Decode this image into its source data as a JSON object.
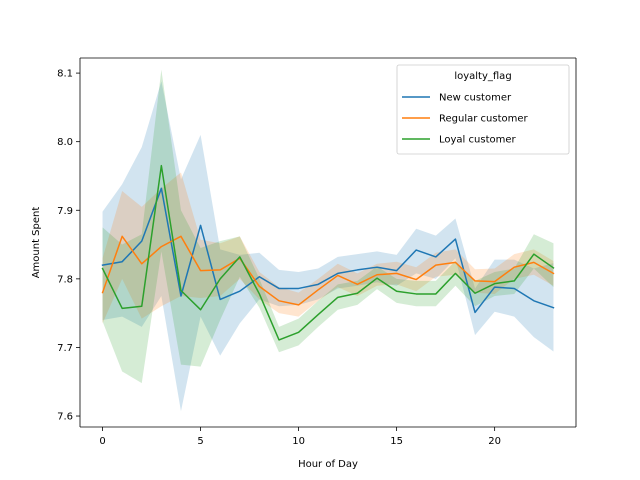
{
  "chart_data": {
    "type": "line",
    "title": "",
    "xlabel": "Hour of Day",
    "ylabel": "Amount Spent",
    "xlim": [
      -1.15,
      24.15
    ],
    "ylim": [
      7.584,
      8.122
    ],
    "xticks": [
      0,
      5,
      10,
      15,
      20
    ],
    "yticks": [
      7.6,
      7.7,
      7.8,
      7.9,
      8.0,
      8.1
    ],
    "ytick_labels": [
      "7.6",
      "7.7",
      "7.8",
      "7.9",
      "8.0",
      "8.1"
    ],
    "grid": false,
    "legend": {
      "title": "loyalty_flag",
      "placement": "top-right"
    },
    "x": [
      0,
      1,
      2,
      3,
      4,
      5,
      6,
      7,
      8,
      9,
      10,
      11,
      12,
      13,
      14,
      15,
      16,
      17,
      18,
      19,
      20,
      21,
      22,
      23
    ],
    "series": [
      {
        "name": "New customer",
        "color": "#1f77b4",
        "values": [
          7.82,
          7.825,
          7.855,
          7.932,
          7.775,
          7.878,
          7.77,
          7.782,
          7.803,
          7.786,
          7.786,
          7.792,
          7.808,
          7.813,
          7.817,
          7.812,
          7.842,
          7.832,
          7.858,
          7.751,
          7.788,
          7.786,
          7.768,
          7.758
        ],
        "ci_low": [
          7.74,
          7.745,
          7.73,
          7.775,
          7.607,
          7.745,
          7.688,
          7.735,
          7.77,
          7.76,
          7.762,
          7.77,
          7.786,
          7.79,
          7.795,
          7.79,
          7.808,
          7.8,
          7.83,
          7.718,
          7.752,
          7.745,
          7.715,
          7.694
        ],
        "ci_high": [
          7.898,
          7.938,
          7.992,
          8.088,
          7.945,
          8.01,
          7.843,
          7.835,
          7.838,
          7.813,
          7.81,
          7.815,
          7.832,
          7.836,
          7.84,
          7.835,
          7.873,
          7.863,
          7.888,
          7.786,
          7.828,
          7.828,
          7.815,
          7.823
        ]
      },
      {
        "name": "Regular customer",
        "color": "#ff7f0e",
        "values": [
          7.78,
          7.862,
          7.822,
          7.847,
          7.862,
          7.812,
          7.813,
          7.83,
          7.789,
          7.768,
          7.762,
          7.784,
          7.805,
          7.792,
          7.806,
          7.808,
          7.799,
          7.82,
          7.824,
          7.797,
          7.796,
          7.817,
          7.824,
          7.808
        ],
        "ci_low": [
          7.735,
          7.8,
          7.742,
          7.76,
          7.775,
          7.772,
          7.775,
          7.8,
          7.77,
          7.75,
          7.745,
          7.768,
          7.788,
          7.775,
          7.79,
          7.792,
          7.782,
          7.803,
          7.806,
          7.78,
          7.778,
          7.8,
          7.806,
          7.79
        ],
        "ci_high": [
          7.83,
          7.928,
          7.905,
          7.932,
          7.955,
          7.857,
          7.852,
          7.862,
          7.81,
          7.788,
          7.78,
          7.8,
          7.822,
          7.808,
          7.822,
          7.825,
          7.817,
          7.838,
          7.843,
          7.814,
          7.815,
          7.836,
          7.843,
          7.826
        ]
      },
      {
        "name": "Loyal customer",
        "color": "#2ca02c",
        "values": [
          7.815,
          7.757,
          7.76,
          7.965,
          7.783,
          7.755,
          7.8,
          7.832,
          7.778,
          7.711,
          7.722,
          7.748,
          7.773,
          7.779,
          7.801,
          7.782,
          7.778,
          7.778,
          7.808,
          7.779,
          7.793,
          7.797,
          7.836,
          7.816
        ],
        "ci_low": [
          7.738,
          7.665,
          7.648,
          7.84,
          7.675,
          7.672,
          7.74,
          7.803,
          7.758,
          7.693,
          7.703,
          7.73,
          7.755,
          7.762,
          7.785,
          7.765,
          7.76,
          7.76,
          7.79,
          7.76,
          7.775,
          7.778,
          7.815,
          7.788
        ],
        "ci_high": [
          7.875,
          7.85,
          7.865,
          8.105,
          7.9,
          7.845,
          7.855,
          7.862,
          7.8,
          7.73,
          7.742,
          7.768,
          7.792,
          7.797,
          7.818,
          7.8,
          7.797,
          7.797,
          7.826,
          7.797,
          7.81,
          7.815,
          7.865,
          7.852
        ]
      }
    ]
  }
}
